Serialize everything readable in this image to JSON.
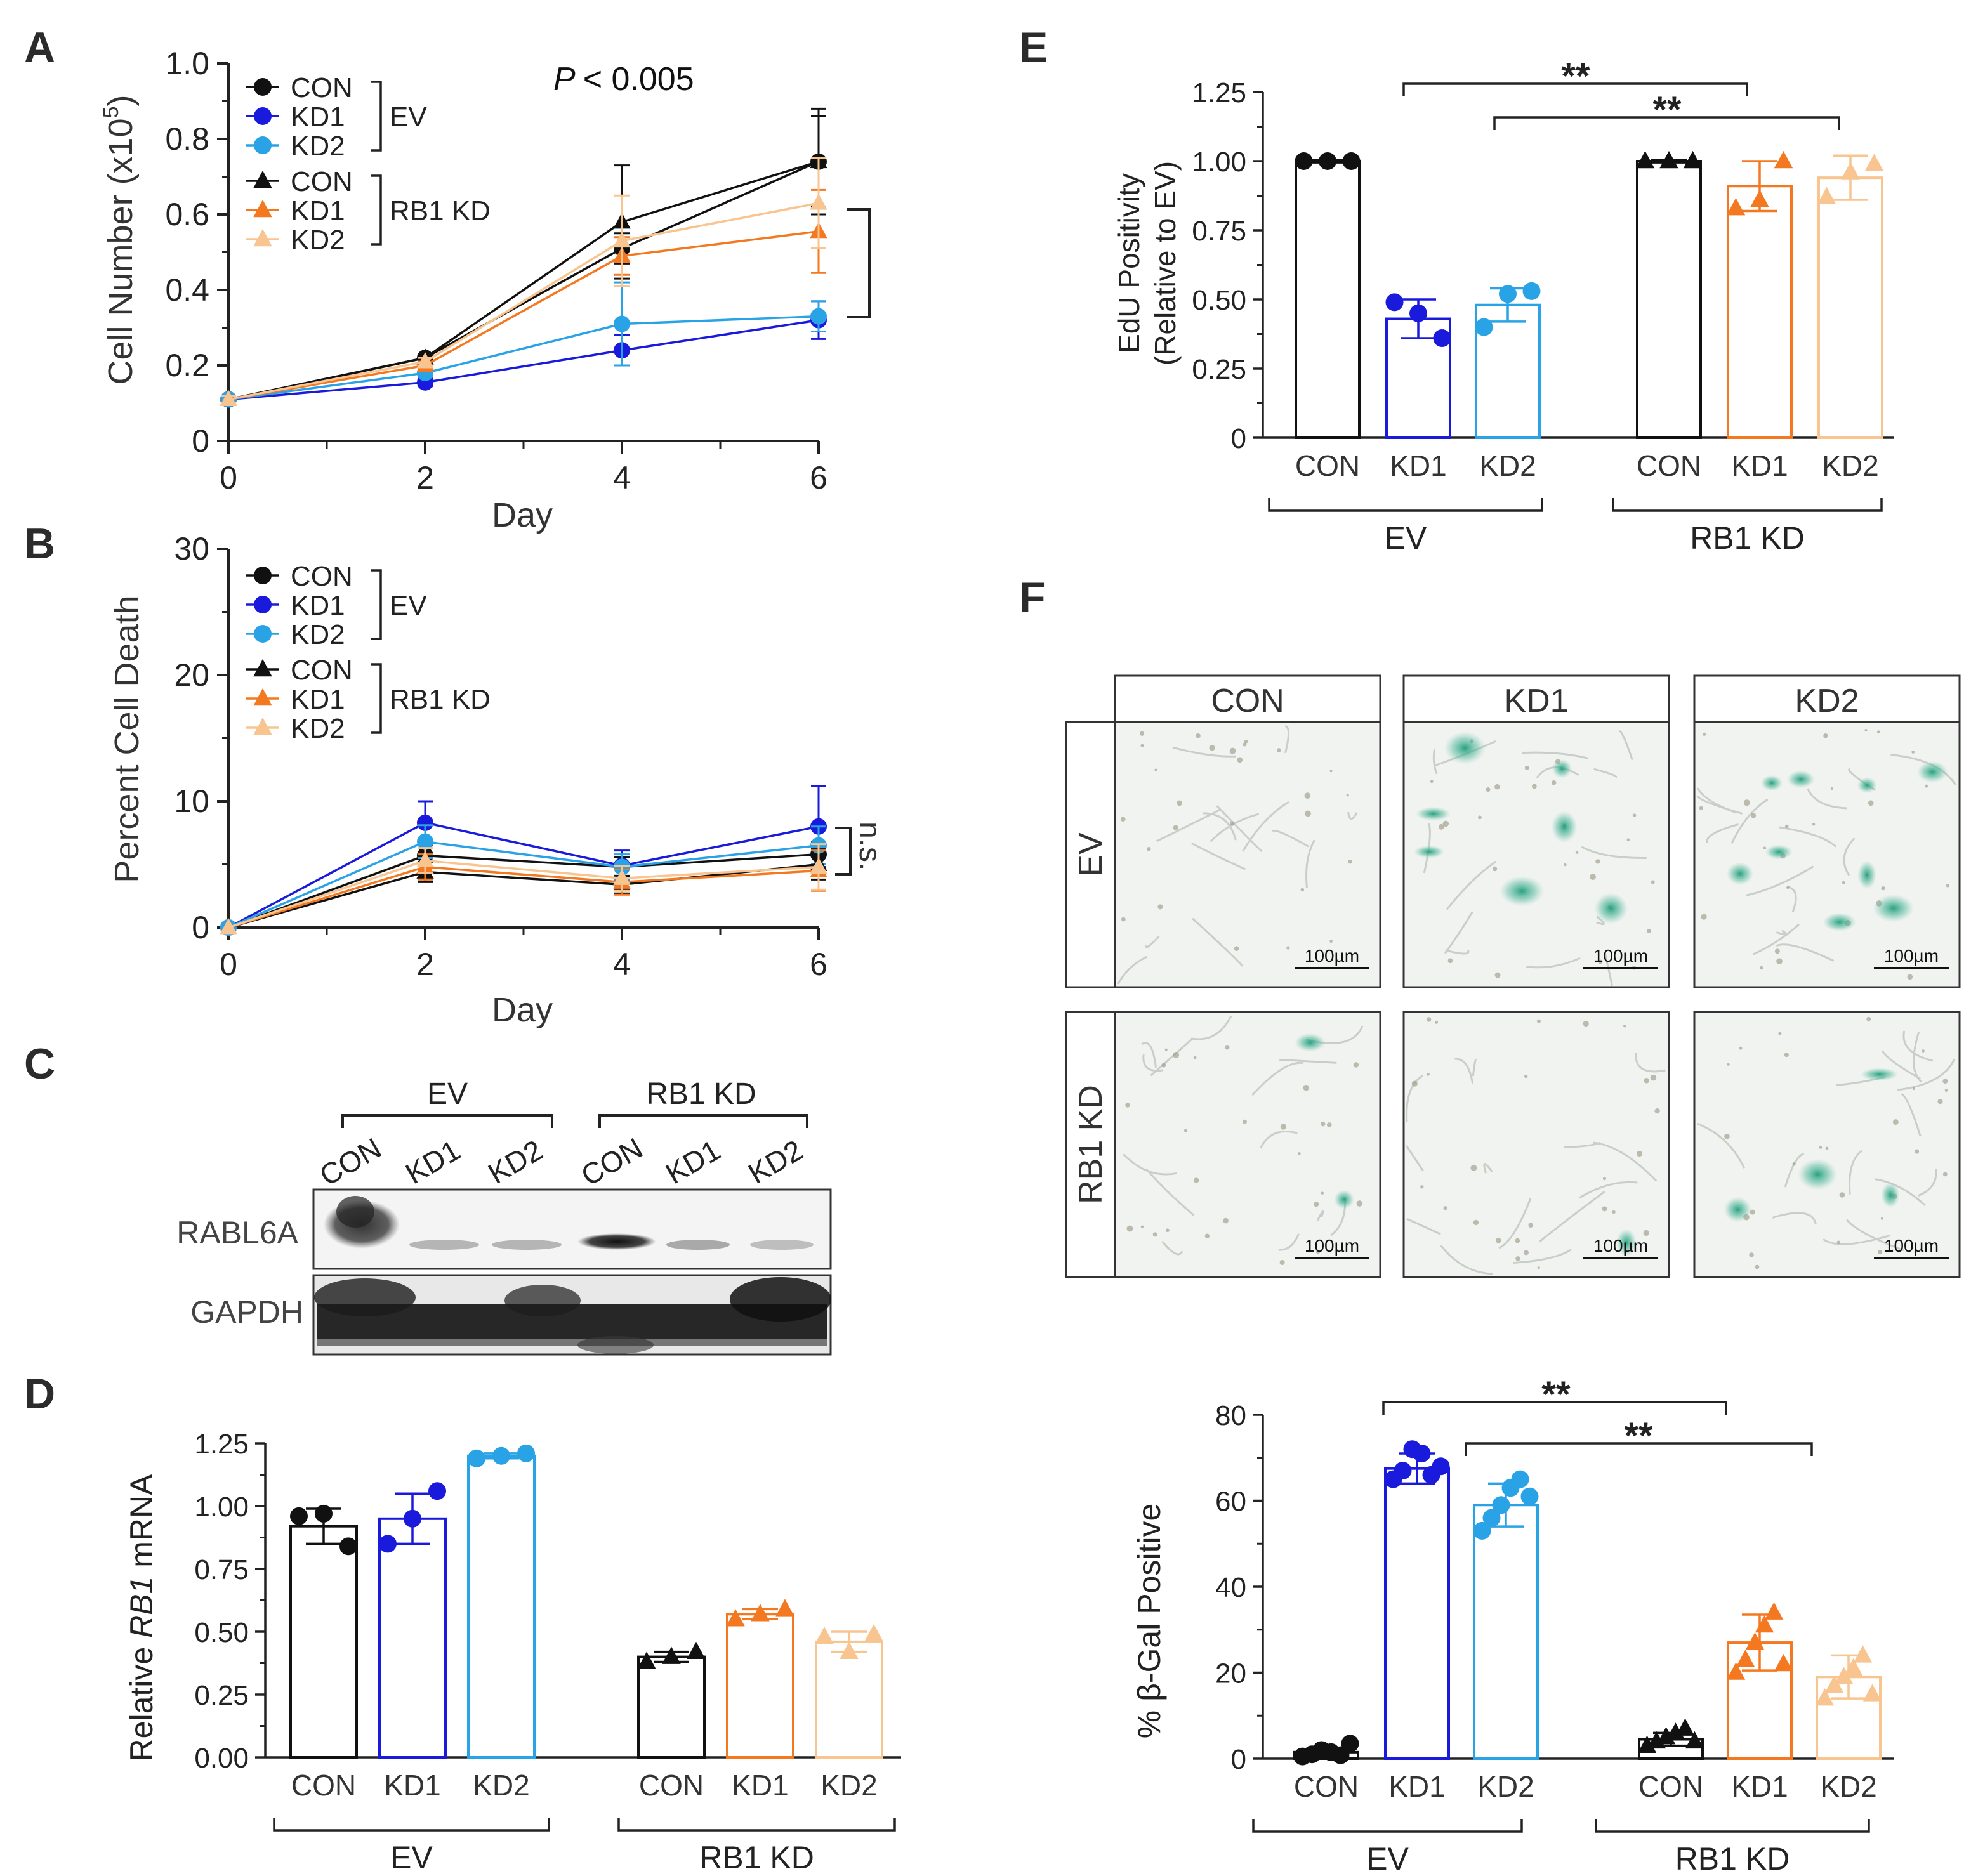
{
  "figure": {
    "colors": {
      "black": "#111111",
      "blue": "#1a1adc",
      "lightblue": "#29a3e6",
      "orange": "#f4781f",
      "lightorange": "#f8c48f",
      "blot_band": "#1e1e1e",
      "stain": "#2fa886"
    }
  },
  "panelA": {
    "letter": "A",
    "pvalue_label": "P",
    "pvalue_text": "< 0.005",
    "legend": {
      "ev_group": "EV",
      "rb1_group": "RB1 KD",
      "entries": [
        "CON",
        "KD1",
        "KD2",
        "CON",
        "KD1",
        "KD2"
      ]
    }
  },
  "panelB": {
    "letter": "B",
    "ns_label": "n.s.",
    "legend": {
      "ev_group": "EV",
      "rb1_group": "RB1 KD",
      "entries": [
        "CON",
        "KD1",
        "KD2",
        "CON",
        "KD1",
        "KD2"
      ]
    }
  },
  "panelC": {
    "letter": "C",
    "groups": [
      "EV",
      "RB1 KD"
    ],
    "lanes": [
      "CON",
      "KD1",
      "KD2",
      "CON",
      "KD1",
      "KD2"
    ],
    "rows": [
      "RABL6A",
      "GAPDH"
    ]
  },
  "panelD": {
    "letter": "D",
    "ylabel_pre": "Relative ",
    "ylabel_gene": "RB1",
    "ylabel_post": " mRNA"
  },
  "panelE": {
    "letter": "E",
    "ylabel_line1": "EdU Positivity",
    "ylabel_line2": "(Relative to EV)",
    "sig1": "**",
    "sig2": "**"
  },
  "panelF": {
    "letter": "F",
    "columns": [
      "CON",
      "KD1",
      "KD2"
    ],
    "rows": [
      "EV",
      "RB1 KD"
    ],
    "scalebar": "100µm",
    "sig1": "**",
    "sig2": "**"
  },
  "chart_data": [
    {
      "id": "A",
      "type": "line",
      "title": "",
      "xlabel": "Day",
      "ylabel": "Cell Number (x10^5)",
      "ylabel_main": "Cell Number (x10",
      "ylabel_exp": "5",
      "ylabel_close": ")",
      "x": [
        0,
        2,
        4,
        6
      ],
      "xlim": [
        0,
        6
      ],
      "ylim": [
        0,
        1.0
      ],
      "xticks": [
        "0",
        "2",
        "4",
        "6"
      ],
      "yticks": [
        "0",
        "0.2",
        "0.4",
        "0.6",
        "0.8",
        "1.0"
      ],
      "series": [
        {
          "name": "CON (EV)",
          "color": "#111111",
          "marker": "circle",
          "values": [
            0.11,
            0.22,
            0.51,
            0.74
          ],
          "err": [
            0.01,
            0.01,
            0.04,
            0.12
          ]
        },
        {
          "name": "KD1 (EV)",
          "color": "#1a1adc",
          "marker": "circle",
          "values": [
            0.11,
            0.155,
            0.24,
            0.32
          ],
          "err": [
            0.01,
            0.01,
            0.04,
            0.05
          ]
        },
        {
          "name": "KD2 (EV)",
          "color": "#29a3e6",
          "marker": "circle",
          "values": [
            0.11,
            0.18,
            0.31,
            0.33
          ],
          "err": [
            0.01,
            0.01,
            0.11,
            0.04
          ]
        },
        {
          "name": "CON (RB1 KD)",
          "color": "#111111",
          "marker": "triangle",
          "values": [
            0.11,
            0.22,
            0.58,
            0.74
          ],
          "err": [
            0.01,
            0.01,
            0.15,
            0.14
          ]
        },
        {
          "name": "KD1 (RB1 KD)",
          "color": "#f4781f",
          "marker": "triangle",
          "values": [
            0.11,
            0.2,
            0.49,
            0.555
          ],
          "err": [
            0.01,
            0.01,
            0.05,
            0.11
          ]
        },
        {
          "name": "KD2 (RB1 KD)",
          "color": "#f8c48f",
          "marker": "triangle",
          "values": [
            0.11,
            0.21,
            0.53,
            0.63
          ],
          "err": [
            0.01,
            0.01,
            0.12,
            0.12
          ]
        }
      ]
    },
    {
      "id": "B",
      "type": "line",
      "title": "",
      "xlabel": "Day",
      "ylabel": "Percent Cell Death",
      "x": [
        0,
        2,
        4,
        6
      ],
      "xlim": [
        0,
        6
      ],
      "ylim": [
        0,
        30
      ],
      "xticks": [
        "0",
        "2",
        "4",
        "6"
      ],
      "yticks": [
        "0",
        "10",
        "20",
        "30"
      ],
      "series": [
        {
          "name": "CON (EV)",
          "color": "#111111",
          "marker": "circle",
          "values": [
            0,
            5.7,
            4.8,
            5.8
          ],
          "err": [
            0,
            0.8,
            0.8,
            1.0
          ]
        },
        {
          "name": "KD1 (EV)",
          "color": "#1a1adc",
          "marker": "circle",
          "values": [
            0,
            8.3,
            4.9,
            8.0
          ],
          "err": [
            0,
            1.7,
            1.2,
            3.2
          ]
        },
        {
          "name": "KD2 (EV)",
          "color": "#29a3e6",
          "marker": "circle",
          "values": [
            0,
            6.8,
            4.8,
            6.5
          ],
          "err": [
            0,
            1.3,
            1.0,
            1.5
          ]
        },
        {
          "name": "CON (RB1 KD)",
          "color": "#111111",
          "marker": "triangle",
          "values": [
            0,
            4.4,
            3.4,
            5.0
          ],
          "err": [
            0,
            0.8,
            0.7,
            1.2
          ]
        },
        {
          "name": "KD1 (RB1 KD)",
          "color": "#f4781f",
          "marker": "triangle",
          "values": [
            0,
            4.8,
            3.6,
            4.5
          ],
          "err": [
            0,
            1.0,
            1.0,
            1.6
          ]
        },
        {
          "name": "KD2 (RB1 KD)",
          "color": "#f8c48f",
          "marker": "triangle",
          "values": [
            0,
            5.3,
            3.9,
            4.8
          ],
          "err": [
            0,
            1.0,
            1.0,
            1.8
          ]
        }
      ]
    },
    {
      "id": "D",
      "type": "bar",
      "title": "",
      "xlabel": "",
      "ylabel": "Relative RB1 mRNA",
      "ylim": [
        0,
        1.25
      ],
      "yticks": [
        "0.00",
        "0.25",
        "0.50",
        "0.75",
        "1.00",
        "1.25"
      ],
      "group_labels": [
        "EV",
        "RB1 KD"
      ],
      "categories": [
        "CON",
        "KD1",
        "KD2",
        "CON",
        "KD1",
        "KD2"
      ],
      "values": [
        0.92,
        0.95,
        1.2,
        0.4,
        0.57,
        0.46
      ],
      "err": [
        0.07,
        0.1,
        0.01,
        0.02,
        0.02,
        0.04
      ],
      "points": [
        [
          0.96,
          0.97,
          0.84
        ],
        [
          0.85,
          0.95,
          1.06
        ],
        [
          1.19,
          1.2,
          1.21
        ],
        [
          0.38,
          0.4,
          0.42
        ],
        [
          0.55,
          0.57,
          0.59
        ],
        [
          0.48,
          0.42,
          0.49
        ]
      ],
      "colors": [
        "#111111",
        "#1a1adc",
        "#29a3e6",
        "#111111",
        "#f4781f",
        "#f8c48f"
      ],
      "markers": [
        "circle",
        "circle",
        "circle",
        "triangle",
        "triangle",
        "triangle"
      ]
    },
    {
      "id": "E",
      "type": "bar",
      "title": "",
      "xlabel": "",
      "ylabel": "EdU Positivity (Relative to EV)",
      "ylim": [
        0,
        1.25
      ],
      "yticks": [
        "0",
        "0.25",
        "0.50",
        "0.75",
        "1.00",
        "1.25"
      ],
      "group_labels": [
        "EV",
        "RB1 KD"
      ],
      "categories": [
        "CON",
        "KD1",
        "KD2",
        "CON",
        "KD1",
        "KD2"
      ],
      "values": [
        1.0,
        0.43,
        0.48,
        1.0,
        0.91,
        0.94
      ],
      "err": [
        0.005,
        0.07,
        0.06,
        0.005,
        0.09,
        0.08
      ],
      "points": [
        [
          1.0,
          1.0,
          1.0
        ],
        [
          0.49,
          0.45,
          0.36
        ],
        [
          0.4,
          0.52,
          0.53
        ],
        [
          1.0,
          1.0,
          1.0
        ],
        [
          0.83,
          0.86,
          1.0
        ],
        [
          0.87,
          0.96,
          0.99
        ]
      ],
      "colors": [
        "#111111",
        "#1a1adc",
        "#29a3e6",
        "#111111",
        "#f4781f",
        "#f8c48f"
      ],
      "markers": [
        "circle",
        "circle",
        "circle",
        "triangle",
        "triangle",
        "triangle"
      ]
    },
    {
      "id": "F",
      "type": "bar",
      "title": "",
      "xlabel": "",
      "ylabel": "% β-Gal Positive",
      "ylim": [
        0,
        80
      ],
      "yticks": [
        "0",
        "20",
        "40",
        "60",
        "80"
      ],
      "group_labels": [
        "EV",
        "RB1 KD"
      ],
      "categories": [
        "CON",
        "KD1",
        "KD2",
        "CON",
        "KD1",
        "KD2"
      ],
      "values": [
        1.5,
        67.5,
        59,
        4.5,
        27,
        19
      ],
      "err": [
        1.0,
        3.5,
        5.0,
        1.5,
        6.5,
        5.0
      ],
      "points": [
        [
          0.5,
          1.0,
          2.0,
          1.5,
          0.8,
          3.5
        ],
        [
          65,
          67,
          72,
          71,
          66,
          68
        ],
        [
          53,
          56,
          59,
          63,
          65,
          61
        ],
        [
          3,
          4,
          5,
          6,
          7,
          4
        ],
        [
          20,
          23,
          27,
          31,
          34,
          22
        ],
        [
          14,
          17,
          19,
          21,
          24,
          15
        ]
      ],
      "colors": [
        "#111111",
        "#1a1adc",
        "#29a3e6",
        "#111111",
        "#f4781f",
        "#f8c48f"
      ],
      "markers": [
        "circle",
        "circle",
        "circle",
        "triangle",
        "triangle",
        "triangle"
      ]
    }
  ]
}
